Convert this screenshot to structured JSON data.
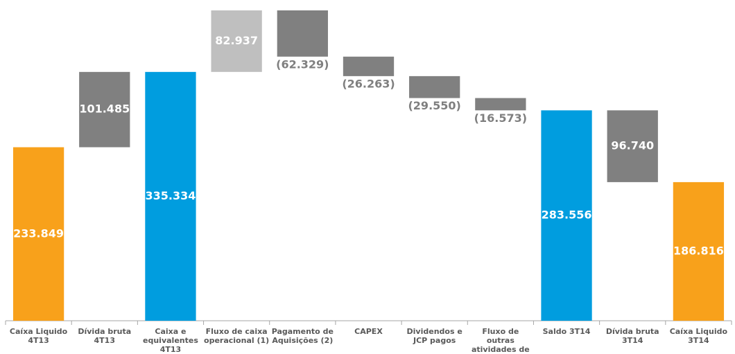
{
  "chart_data": {
    "type": "waterfall",
    "categories": [
      "Caíxa Liquido 4T13",
      "Dívida bruta 4T13",
      "Caixa e equivalentes 4T13",
      "Fluxo de caixa operacional (1)",
      "Pagamento de Aquisições (2)",
      "CAPEX",
      "Dividendos e JCP pagos",
      "Fluxo de outras atividades de financiamento",
      "Saldo 3T14",
      "Dívida bruta 3T14",
      "Caíxa Liquido 3T14"
    ],
    "values": [
      233849,
      101485,
      335334,
      82937,
      -62329,
      -26263,
      -29550,
      -16573,
      283556,
      -96740,
      186816
    ],
    "value_labels": [
      "233.849",
      "101.485",
      "335.334",
      "82.937",
      "(62.329)",
      "(26.263)",
      "(29.550)",
      "(16.573)",
      "283.556",
      "96.740",
      "186.816"
    ],
    "totals": [
      true,
      false,
      true,
      false,
      false,
      false,
      false,
      false,
      true,
      false,
      true
    ],
    "colors": [
      "#f8a11b",
      "#808080",
      "#009ddf",
      "#bfbfbf",
      "#808080",
      "#808080",
      "#808080",
      "#808080",
      "#009ddf",
      "#808080",
      "#f8a11b"
    ]
  }
}
